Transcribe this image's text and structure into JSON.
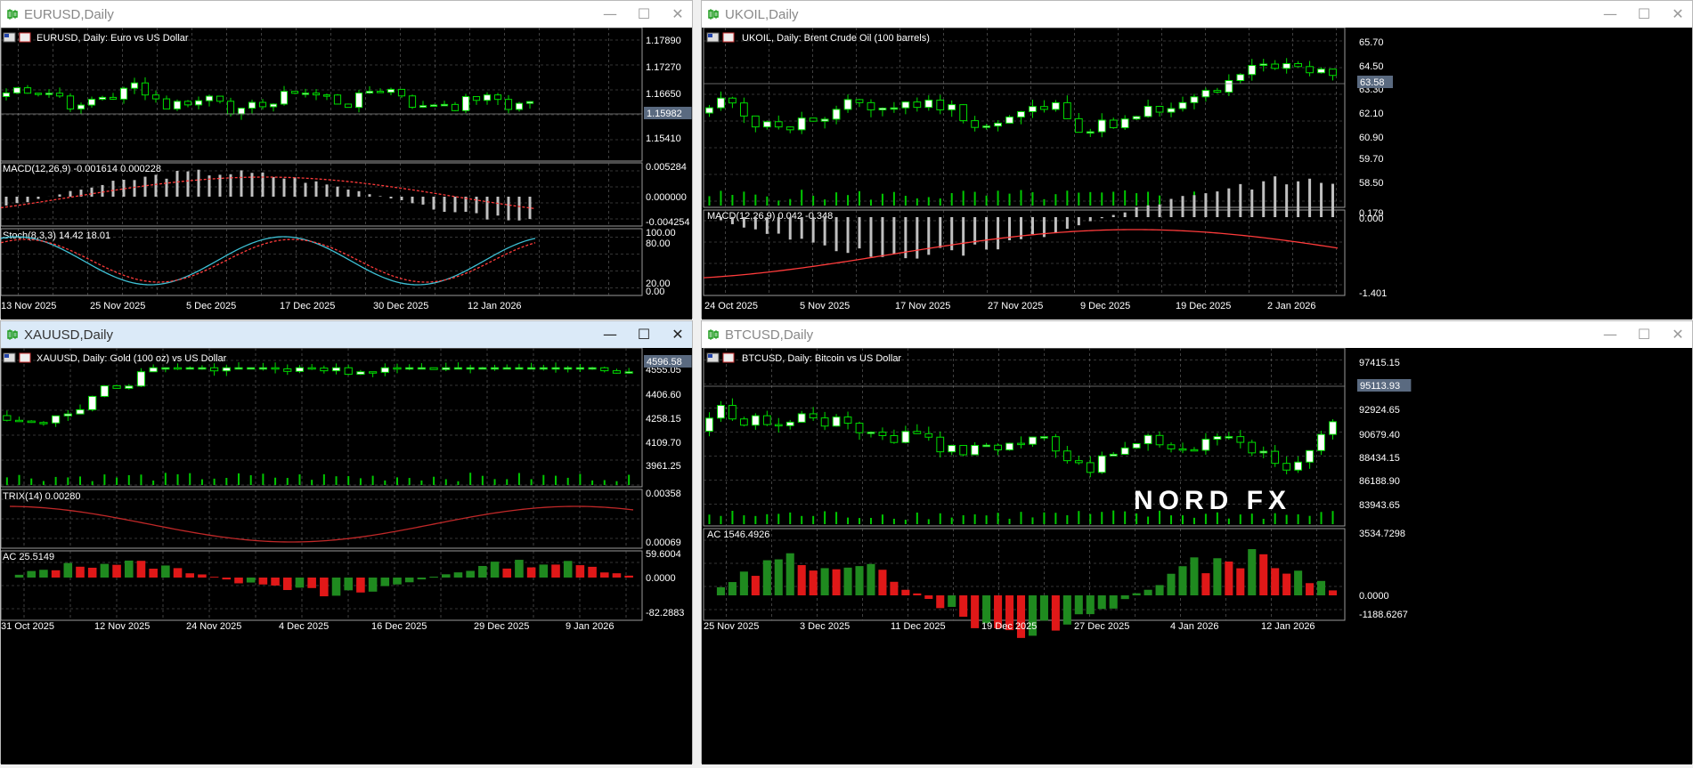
{
  "windows": [
    {
      "id": "eurusd",
      "title": "EURUSD,Daily",
      "active": false,
      "header": "EURUSD, Daily:  Euro vs US Dollar",
      "price_tag": "1.15982",
      "price_ticks": [
        "1.17890",
        "1.17270",
        "1.16650",
        "1.15410"
      ],
      "indicators": [
        {
          "label": "MACD(12,26,9) -0.001614 0.000228",
          "ticks": [
            "0.005284",
            "0.000000",
            "-0.004254"
          ]
        },
        {
          "label": "Stoch(8,3,3) 14.42 18.01",
          "ticks": [
            "100.00",
            "80.00",
            "20.00",
            "0.00"
          ]
        }
      ],
      "dates": [
        "13 Nov 2025",
        "25 Nov 2025",
        "5 Dec 2025",
        "17 Dec 2025",
        "30 Dec 2025",
        "12 Jan 2026"
      ]
    },
    {
      "id": "ukoil",
      "title": "UKOIL,Daily",
      "active": false,
      "header": "UKOIL, Daily:  Brent Crude Oil (100 barrels)",
      "price_tag": "63.58",
      "price_ticks": [
        "65.70",
        "64.50",
        "63.30",
        "62.10",
        "60.90",
        "59.70",
        "58.50"
      ],
      "indicators": [
        {
          "label": "MACD(12,26,9) 0.042 -0.348",
          "ticks": [
            "0.179",
            "0.000",
            "-1.401"
          ]
        }
      ],
      "dates": [
        "24 Oct 2025",
        "5 Nov 2025",
        "17 Nov 2025",
        "27 Nov 2025",
        "9 Dec 2025",
        "19 Dec 2025",
        "2 Jan 2026"
      ]
    },
    {
      "id": "xauusd",
      "title": "XAUUSD,Daily",
      "active": true,
      "header": "XAUUSD, Daily:  Gold (100 oz) vs US Dollar",
      "price_tag": "4596.58",
      "price_ticks": [
        "4555.05",
        "4406.60",
        "4258.15",
        "4109.70",
        "3961.25"
      ],
      "indicators": [
        {
          "label": "TRIX(14) 0.00280",
          "ticks": [
            "0.00358",
            "0.00069"
          ]
        },
        {
          "label": "AC 25.5149",
          "ticks": [
            "59.6004",
            "0.0000",
            "-82.2883"
          ]
        }
      ],
      "dates": [
        "31 Oct 2025",
        "12 Nov 2025",
        "24 Nov 2025",
        "4 Dec 2025",
        "16 Dec 2025",
        "29 Dec 2025",
        "9 Jan 2026"
      ]
    },
    {
      "id": "btcusd",
      "title": "BTCUSD,Daily",
      "active": false,
      "header": "BTCUSD, Daily:  Bitcoin vs US Dollar",
      "price_tag": "95113.93",
      "price_ticks": [
        "97415.15",
        "92924.65",
        "90679.40",
        "88434.15",
        "86188.90",
        "83943.65"
      ],
      "indicators": [
        {
          "label": "AC 1546.4926",
          "ticks": [
            "3534.7298",
            "0.0000",
            "-1188.6267"
          ]
        }
      ],
      "dates": [
        "25 Nov 2025",
        "3 Dec 2025",
        "11 Dec 2025",
        "19 Dec 2025",
        "27 Dec 2025",
        "4 Jan 2026",
        "12 Jan 2026"
      ],
      "watermark": "NORD FX"
    }
  ],
  "colors": {
    "background": "#000000",
    "grid": "#6b6b6b",
    "bull_fill": "#ffffff",
    "bull_line": "#00dd00",
    "bear_fill": "#000000",
    "volume": "#00c800",
    "macd_hist": "#c0c0c0",
    "signal": "#ff3b3b",
    "stoch_main": "#3ec0d4",
    "trix": "#c02828",
    "ac_up": "#1f8a1f",
    "ac_down": "#e01818",
    "text": "#ffffff"
  },
  "icons": {
    "title": "candle-chart-icon",
    "minimize": "minimize-icon",
    "maximize": "maximize-icon",
    "close": "close-icon",
    "header": "flag-icon"
  }
}
